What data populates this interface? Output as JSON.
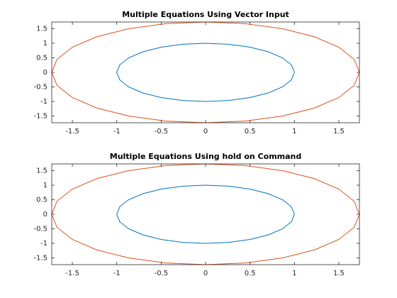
{
  "chart_data": [
    {
      "type": "line",
      "title": "Multiple Equations Using Vector Input",
      "xlim": [
        -1.732,
        1.732
      ],
      "ylim": [
        -1.732,
        1.732
      ],
      "xticks": [
        -1.5,
        -1,
        -0.5,
        0,
        0.5,
        1,
        1.5
      ],
      "yticks": [
        -1.5,
        -1,
        -0.5,
        0,
        0.5,
        1,
        1.5
      ],
      "series": [
        {
          "color": "#0072bd",
          "x": [
            1,
            0.966,
            0.866,
            0.707,
            0.5,
            0.259,
            0,
            -0.259,
            -0.5,
            -0.707,
            -0.866,
            -0.966,
            -1,
            -0.966,
            -0.866,
            -0.707,
            -0.5,
            -0.259,
            0,
            0.259,
            0.5,
            0.707,
            0.866,
            0.966,
            1
          ],
          "values": [
            0,
            0.259,
            0.5,
            0.707,
            0.866,
            0.966,
            1,
            0.966,
            0.866,
            0.707,
            0.5,
            0.259,
            0,
            -0.259,
            -0.5,
            -0.707,
            -0.866,
            -0.966,
            -1,
            -0.966,
            -0.866,
            -0.707,
            -0.5,
            -0.259,
            0
          ]
        },
        {
          "color": "#d95319",
          "x": [
            1.732,
            1.673,
            1.5,
            1.225,
            0.866,
            0.448,
            0,
            -0.448,
            -0.866,
            -1.225,
            -1.5,
            -1.673,
            -1.732,
            -1.673,
            -1.5,
            -1.225,
            -0.866,
            -0.448,
            0,
            0.448,
            0.866,
            1.225,
            1.5,
            1.673,
            1.732
          ],
          "values": [
            0,
            0.448,
            0.866,
            1.225,
            1.5,
            1.673,
            1.732,
            1.673,
            1.5,
            1.225,
            0.866,
            0.448,
            0,
            -0.448,
            -0.866,
            -1.225,
            -1.5,
            -1.673,
            -1.732,
            -1.673,
            -1.5,
            -1.225,
            -0.866,
            -0.448,
            0
          ]
        }
      ]
    },
    {
      "type": "line",
      "title": "Multiple Equations Using hold on Command",
      "xlim": [
        -1.732,
        1.732
      ],
      "ylim": [
        -1.732,
        1.732
      ],
      "xticks": [
        -1.5,
        -1,
        -0.5,
        0,
        0.5,
        1,
        1.5
      ],
      "yticks": [
        -1.5,
        -1,
        -0.5,
        0,
        0.5,
        1,
        1.5
      ],
      "series": [
        {
          "color": "#0072bd",
          "x": [
            1,
            0.966,
            0.866,
            0.707,
            0.5,
            0.259,
            0,
            -0.259,
            -0.5,
            -0.707,
            -0.866,
            -0.966,
            -1,
            -0.966,
            -0.866,
            -0.707,
            -0.5,
            -0.259,
            0,
            0.259,
            0.5,
            0.707,
            0.866,
            0.966,
            1
          ],
          "values": [
            0,
            0.259,
            0.5,
            0.707,
            0.866,
            0.966,
            1,
            0.966,
            0.866,
            0.707,
            0.5,
            0.259,
            0,
            -0.259,
            -0.5,
            -0.707,
            -0.866,
            -0.966,
            -1,
            -0.966,
            -0.866,
            -0.707,
            -0.5,
            -0.259,
            0
          ]
        },
        {
          "color": "#d95319",
          "x": [
            1.732,
            1.673,
            1.5,
            1.225,
            0.866,
            0.448,
            0,
            -0.448,
            -0.866,
            -1.225,
            -1.5,
            -1.673,
            -1.732,
            -1.673,
            -1.5,
            -1.225,
            -0.866,
            -0.448,
            0,
            0.448,
            0.866,
            1.225,
            1.5,
            1.673,
            1.732
          ],
          "values": [
            0,
            0.448,
            0.866,
            1.225,
            1.5,
            1.673,
            1.732,
            1.673,
            1.5,
            1.225,
            0.866,
            0.448,
            0,
            -0.448,
            -0.866,
            -1.225,
            -1.5,
            -1.673,
            -1.732,
            -1.673,
            -1.5,
            -1.225,
            -0.866,
            -0.448,
            0
          ]
        }
      ]
    }
  ]
}
